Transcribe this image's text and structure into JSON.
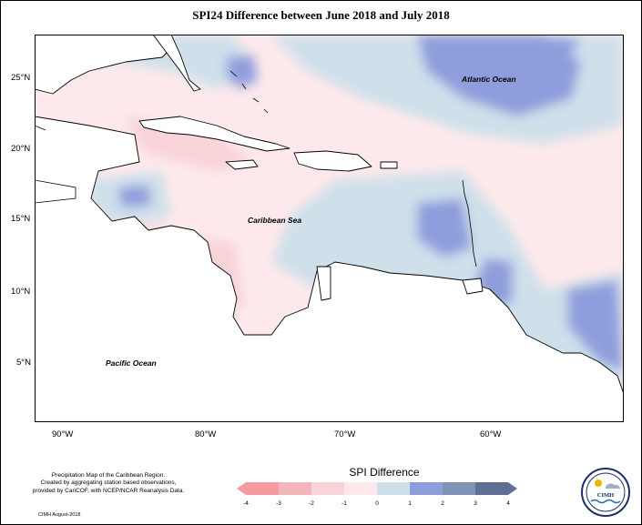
{
  "title": "SPI24 Difference between June 2018 and July 2018",
  "map": {
    "lat_ticks": [
      "25°N",
      "20°N",
      "15°N",
      "10°N",
      "5°N"
    ],
    "lon_ticks": [
      "90°W",
      "80°W",
      "70°W",
      "60°W"
    ],
    "labels": {
      "atlantic": "Atlantic Ocean",
      "caribbean": "Caribbean Sea",
      "pacific": "Pacific Ocean"
    }
  },
  "legend": {
    "title": "SPI Difference",
    "ticks": [
      "-4",
      "-3",
      "-2",
      "-1",
      "0",
      "1",
      "2",
      "3",
      "4"
    ],
    "colors": [
      "#f59aa1",
      "#f4b6bd",
      "#f8d3d8",
      "#fde9eb",
      "#cfe0eb",
      "#8e9edc",
      "#7f93b5",
      "#5f6f94"
    ]
  },
  "footer": {
    "note_lines": [
      "Precipitation Map of the Caribbean Region.",
      "Created by aggregating station based observations,",
      "provided by CariCOF, with NCEP/NCAR Reanalysis Data."
    ],
    "credit": "CIMH August-2018"
  },
  "logo": {
    "text": "CIMH"
  }
}
